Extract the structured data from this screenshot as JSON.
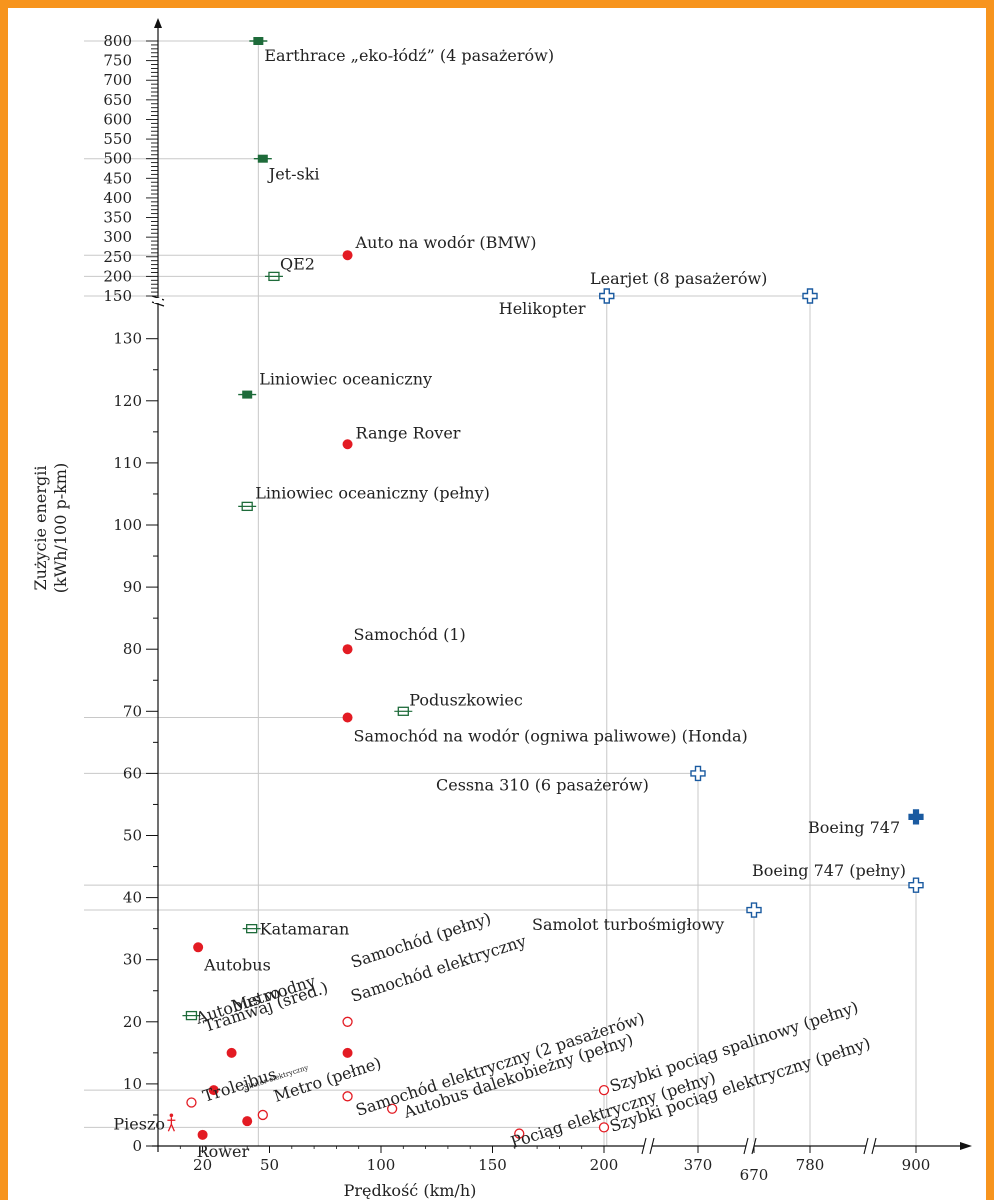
{
  "chart_data": {
    "type": "scatter",
    "xlabel": "Prędkość (km/h)",
    "ylabel_line1": "Zużycie energii",
    "ylabel_line2": "(kWh/100 p-km)",
    "x_ticks": [
      "20",
      "50",
      "100",
      "150",
      "200",
      "370",
      "670",
      "780",
      "900"
    ],
    "y_ticks_lower": [
      "0",
      "10",
      "20",
      "30",
      "40",
      "50",
      "60",
      "70",
      "80",
      "90",
      "100",
      "110",
      "120",
      "130"
    ],
    "y_ticks_upper": [
      "150",
      "200",
      "250",
      "300",
      "350",
      "400",
      "450",
      "500",
      "550",
      "600",
      "650",
      "700",
      "750",
      "800"
    ],
    "y_scale": "broken: linear 0–130, compressed 150–800",
    "x_scale": "broken: linear 0–200, then 370, 670, 780, 900",
    "colors": {
      "car": "#e31b23",
      "ground_open": "#e31b23",
      "boat": "#1e6b3a",
      "air": "#1a5aa0"
    },
    "points": [
      {
        "label": "Earthrace „eko-łódź” (4 pasażerów)",
        "x": 45,
        "y": 800,
        "marker": "boat-filled"
      },
      {
        "label": "Jet-ski",
        "x": 47,
        "y": 500,
        "marker": "boat-filled"
      },
      {
        "label": "Auto na wodór (BMW)",
        "x": 85,
        "y": 254,
        "marker": "car-filled"
      },
      {
        "label": "QE2",
        "x": 52,
        "y": 200,
        "marker": "boat-open"
      },
      {
        "label": "Learjet (8 pasażerów)",
        "x": 780,
        "y": 150,
        "marker": "air-open"
      },
      {
        "label": "Helikopter",
        "x": 205,
        "y": 150,
        "marker": "air-open"
      },
      {
        "label": "Liniowiec oceaniczny",
        "x": 40,
        "y": 121,
        "marker": "boat-filled"
      },
      {
        "label": "Range Rover",
        "x": 85,
        "y": 113,
        "marker": "car-filled"
      },
      {
        "label": "Liniowiec oceaniczny (pełny)",
        "x": 40,
        "y": 103,
        "marker": "boat-open"
      },
      {
        "label": "Samochód (1)",
        "x": 85,
        "y": 80,
        "marker": "car-filled"
      },
      {
        "label": "Poduszkowiec",
        "x": 110,
        "y": 70,
        "marker": "boat-open"
      },
      {
        "label": "Samochód na wodór (ogniwa paliwowe) (Honda)",
        "x": 85,
        "y": 69,
        "marker": "car-filled"
      },
      {
        "label": "Cessna 310 (6 pasażerów)",
        "x": 370,
        "y": 60,
        "marker": "air-open"
      },
      {
        "label": "Boeing 747",
        "x": 900,
        "y": 53,
        "marker": "air-filled"
      },
      {
        "label": "Boeing 747 (pełny)",
        "x": 900,
        "y": 42,
        "marker": "air-open"
      },
      {
        "label": "Samolot turbośmigłowy",
        "x": 670,
        "y": 38,
        "marker": "air-open"
      },
      {
        "label": "Katamaran",
        "x": 42,
        "y": 35,
        "marker": "boat-open"
      },
      {
        "label": "Autobus",
        "x": 18,
        "y": 32,
        "marker": "car-filled"
      },
      {
        "label": "Autobus wodny",
        "x": 15,
        "y": 21,
        "marker": "boat-open"
      },
      {
        "label": "Metro",
        "x": 33,
        "y": 15,
        "marker": "car-filled"
      },
      {
        "label": "Tramwaj (śred.)",
        "x": 25,
        "y": 9,
        "marker": "car-filled"
      },
      {
        "label": "Trolejbus",
        "x": 15,
        "y": 7,
        "marker": "car-open"
      },
      {
        "label": "Skuter elektryczny",
        "x": 40,
        "y": 4,
        "marker": "car-filled"
      },
      {
        "label": "Metro (pełne)",
        "x": 47,
        "y": 5,
        "marker": "car-open"
      },
      {
        "label": "Samochód (pełny)",
        "x": 85,
        "y": 20,
        "marker": "car-open"
      },
      {
        "label": "Samochód elektryczny",
        "x": 85,
        "y": 15,
        "marker": "car-filled"
      },
      {
        "label": "Samochód elektryczny (2 pasażerów)",
        "x": 85,
        "y": 8,
        "marker": "car-open"
      },
      {
        "label": "Autobus dalekobieżny (pełny)",
        "x": 105,
        "y": 6,
        "marker": "car-open"
      },
      {
        "label": "Pociąg elektryczny (pełny)",
        "x": 162,
        "y": 2,
        "marker": "car-open"
      },
      {
        "label": "Szybki pociąg spalinowy (pełny)",
        "x": 200,
        "y": 9,
        "marker": "car-open"
      },
      {
        "label": "Szybki pociąg elektryczny (pełny)",
        "x": 200,
        "y": 3,
        "marker": "car-open"
      },
      {
        "label": "Pieszo",
        "x": 6,
        "y": 3.5,
        "marker": "walker"
      },
      {
        "label": "Rower",
        "x": 20,
        "y": 1.8,
        "marker": "car-filled"
      }
    ]
  }
}
